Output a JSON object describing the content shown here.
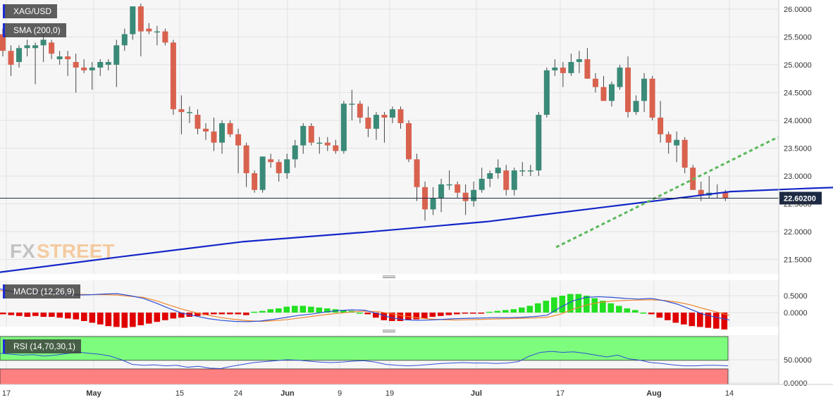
{
  "symbol": "XAG/USD",
  "indicator_labels": {
    "sma": "SMA (200,0)",
    "macd": "MACD (12,26,9)",
    "rsi": "RSI (14,70,30,1)"
  },
  "watermark": {
    "fx": "FX",
    "street": "STREET"
  },
  "current_price_label": "22.60200",
  "colors": {
    "bull": "#3a8a78",
    "bear": "#d9624f",
    "sma": "#1426c8",
    "trendline": "#5cb85c",
    "macd_line": "#2d4fd6",
    "signal_line": "#f0872e",
    "hist_pos": "#22e022",
    "hist_neg": "#e00000",
    "rsi_overbought_zone": "#7dfc7d",
    "rsi_oversold_zone": "#ff8080",
    "rsi_line": "#2d4fd6"
  },
  "x_axis_labels": [
    "17",
    "May",
    "15",
    "24",
    "Jun",
    "9",
    "19",
    "Jul",
    "17",
    "Aug",
    "14"
  ],
  "chart_data": [
    {
      "type": "candlestick",
      "title": "XAG/USD",
      "ylim": [
        21.25,
        26.15
      ],
      "y_ticks": [
        "26.0000",
        "25.5000",
        "25.0000",
        "24.5000",
        "24.0000",
        "23.5000",
        "23.0000",
        "22.5000",
        "22.0000",
        "21.5000"
      ],
      "current_price": 22.602,
      "candles": [
        [
          25.55,
          25.65,
          25.15,
          25.25
        ],
        [
          25.25,
          25.35,
          24.8,
          25.0
        ],
        [
          25.05,
          25.35,
          24.95,
          25.3
        ],
        [
          25.3,
          25.45,
          25.15,
          25.35
        ],
        [
          25.3,
          25.4,
          24.65,
          25.35
        ],
        [
          25.35,
          25.55,
          25.05,
          25.45
        ],
        [
          25.4,
          25.45,
          25.1,
          25.2
        ],
        [
          25.1,
          25.25,
          25.0,
          25.15
        ],
        [
          25.15,
          25.25,
          24.8,
          25.1
        ],
        [
          25.05,
          25.2,
          24.5,
          24.95
        ],
        [
          24.95,
          25.1,
          24.85,
          24.9
        ],
        [
          24.9,
          25.05,
          24.55,
          24.95
        ],
        [
          24.95,
          25.1,
          24.8,
          25.05
        ],
        [
          25.0,
          25.1,
          24.9,
          25.05
        ],
        [
          25.0,
          25.45,
          24.6,
          25.35
        ],
        [
          25.35,
          25.65,
          25.25,
          25.55
        ],
        [
          25.55,
          26.05,
          25.45,
          26.05
        ],
        [
          26.05,
          26.1,
          25.15,
          25.6
        ],
        [
          25.65,
          25.75,
          25.55,
          25.6
        ],
        [
          25.6,
          25.7,
          25.35,
          25.6
        ],
        [
          25.6,
          25.65,
          25.35,
          25.4
        ],
        [
          25.4,
          25.45,
          24.1,
          24.2
        ],
        [
          24.2,
          24.45,
          23.75,
          24.15
        ],
        [
          24.15,
          24.25,
          23.95,
          24.15
        ],
        [
          24.1,
          24.2,
          23.75,
          23.85
        ],
        [
          23.85,
          23.95,
          23.65,
          23.8
        ],
        [
          23.8,
          24.05,
          23.45,
          23.6
        ],
        [
          23.6,
          24.0,
          23.4,
          23.95
        ],
        [
          23.95,
          24.0,
          23.7,
          23.75
        ],
        [
          23.75,
          23.85,
          23.05,
          23.55
        ],
        [
          23.55,
          23.6,
          22.8,
          23.05
        ],
        [
          23.05,
          23.1,
          22.7,
          22.75
        ],
        [
          22.75,
          23.35,
          22.7,
          23.35
        ],
        [
          23.3,
          23.4,
          23.15,
          23.25
        ],
        [
          23.25,
          23.3,
          22.9,
          23.05
        ],
        [
          23.05,
          23.4,
          22.95,
          23.3
        ],
        [
          23.3,
          23.65,
          23.15,
          23.55
        ],
        [
          23.55,
          23.95,
          23.4,
          23.9
        ],
        [
          23.9,
          23.95,
          23.55,
          23.6
        ],
        [
          23.6,
          23.7,
          23.4,
          23.6
        ],
        [
          23.6,
          23.7,
          23.45,
          23.55
        ],
        [
          23.55,
          23.65,
          23.4,
          23.45
        ],
        [
          23.45,
          24.35,
          23.4,
          24.3
        ],
        [
          24.3,
          24.55,
          24.0,
          24.3
        ],
        [
          24.3,
          24.35,
          23.95,
          24.05
        ],
        [
          24.05,
          24.25,
          23.7,
          23.85
        ],
        [
          23.85,
          24.15,
          23.65,
          24.1
        ],
        [
          24.1,
          24.15,
          23.6,
          24.05
        ],
        [
          24.05,
          24.25,
          23.95,
          24.2
        ],
        [
          24.2,
          24.25,
          23.85,
          23.95
        ],
        [
          23.95,
          24.0,
          23.25,
          23.3
        ],
        [
          23.3,
          23.4,
          22.55,
          22.8
        ],
        [
          22.8,
          22.9,
          22.2,
          22.4
        ],
        [
          22.4,
          22.8,
          22.3,
          22.6
        ],
        [
          22.6,
          22.95,
          22.35,
          22.85
        ],
        [
          22.85,
          23.1,
          22.75,
          22.85
        ],
        [
          22.85,
          22.9,
          22.6,
          22.7
        ],
        [
          22.7,
          22.85,
          22.3,
          22.55
        ],
        [
          22.55,
          22.9,
          22.45,
          22.75
        ],
        [
          22.75,
          23.15,
          22.7,
          22.95
        ],
        [
          22.95,
          23.1,
          22.8,
          23.05
        ],
        [
          23.05,
          23.3,
          22.95,
          23.15
        ],
        [
          23.1,
          23.2,
          22.65,
          22.75
        ],
        [
          22.75,
          23.15,
          22.65,
          23.1
        ],
        [
          23.1,
          23.25,
          23.0,
          23.1
        ],
        [
          23.1,
          23.2,
          23.0,
          23.1
        ],
        [
          23.1,
          24.15,
          23.0,
          24.1
        ],
        [
          24.1,
          24.95,
          24.05,
          24.9
        ],
        [
          24.9,
          25.1,
          24.8,
          24.95
        ],
        [
          24.95,
          25.05,
          24.6,
          24.85
        ],
        [
          24.85,
          25.2,
          24.8,
          25.05
        ],
        [
          25.05,
          25.25,
          24.85,
          25.1
        ],
        [
          25.1,
          25.3,
          24.75,
          24.75
        ],
        [
          24.75,
          24.85,
          24.5,
          24.6
        ],
        [
          24.6,
          24.8,
          24.35,
          24.35
        ],
        [
          24.35,
          24.7,
          24.25,
          24.65
        ],
        [
          24.6,
          25.0,
          24.55,
          24.95
        ],
        [
          24.95,
          25.15,
          24.05,
          24.15
        ],
        [
          24.15,
          24.45,
          24.1,
          24.35
        ],
        [
          24.35,
          24.85,
          24.15,
          24.75
        ],
        [
          24.75,
          24.8,
          24.0,
          24.05
        ],
        [
          24.05,
          24.35,
          23.6,
          23.75
        ],
        [
          23.75,
          23.8,
          23.4,
          23.6
        ],
        [
          23.55,
          23.8,
          23.25,
          23.65
        ],
        [
          23.65,
          23.7,
          23.05,
          23.15
        ],
        [
          23.15,
          23.2,
          22.75,
          22.75
        ],
        [
          22.75,
          22.9,
          22.55,
          22.65
        ],
        [
          22.65,
          23.0,
          22.6,
          22.7
        ],
        [
          22.7,
          22.85,
          22.6,
          22.7
        ],
        [
          22.7,
          22.75,
          22.55,
          22.6
        ]
      ],
      "sma_200": [
        [
          0,
          21.27
        ],
        [
          15,
          21.55
        ],
        [
          30,
          21.82
        ],
        [
          45,
          21.99
        ],
        [
          60,
          22.18
        ],
        [
          75,
          22.45
        ],
        [
          90,
          22.72
        ],
        [
          100,
          22.78
        ],
        [
          108,
          22.82
        ],
        [
          115,
          22.88
        ],
        [
          125,
          23.02
        ],
        [
          133,
          23.1
        ],
        [
          140,
          23.17
        ],
        [
          145,
          23.22
        ],
        [
          151,
          23.27
        ]
      ],
      "trendline": {
        "points": [
          [
            68.5,
            21.72
          ],
          [
            177,
            23.7
          ]
        ]
      }
    },
    {
      "type": "line",
      "title": "MACD (12,26,9)",
      "ylim": [
        -0.3,
        0.75
      ],
      "y_ticks": [
        "0.5000",
        "0.0000"
      ],
      "macd": [
        0.7,
        0.62,
        0.58,
        0.6,
        0.59,
        0.55,
        0.52,
        0.53,
        0.55,
        0.56,
        0.5,
        0.42,
        0.28,
        0.12,
        -0.02,
        -0.1,
        -0.18,
        -0.23,
        -0.26,
        -0.27,
        -0.25,
        -0.2,
        -0.14,
        -0.08,
        -0.04,
        0.02,
        0.06,
        0.08,
        0.07,
        -0.03,
        -0.15,
        -0.21,
        -0.23,
        -0.22,
        -0.2,
        -0.18,
        -0.17,
        -0.16,
        -0.15,
        -0.15,
        -0.14,
        -0.12,
        -0.08,
        0.15,
        0.35,
        0.45,
        0.47,
        0.45,
        0.42,
        0.4,
        0.42,
        0.35,
        0.25,
        0.1,
        -0.05,
        -0.14,
        -0.22
      ],
      "signal": [
        0.65,
        0.63,
        0.6,
        0.58,
        0.57,
        0.56,
        0.54,
        0.53,
        0.53,
        0.52,
        0.48,
        0.45,
        0.35,
        0.22,
        0.1,
        0.0,
        -0.08,
        -0.15,
        -0.2,
        -0.24,
        -0.26,
        -0.24,
        -0.21,
        -0.16,
        -0.11,
        -0.06,
        -0.02,
        0.02,
        0.04,
        0.03,
        -0.03,
        -0.1,
        -0.15,
        -0.19,
        -0.21,
        -0.22,
        -0.21,
        -0.2,
        -0.19,
        -0.18,
        -0.17,
        -0.16,
        -0.14,
        -0.05,
        0.1,
        0.22,
        0.3,
        0.34,
        0.36,
        0.37,
        0.38,
        0.36,
        0.31,
        0.23,
        0.12,
        0.02,
        -0.08
      ],
      "histogram": [
        -0.02,
        -0.03,
        -0.04,
        -0.05,
        -0.04,
        -0.05,
        -0.05,
        -0.06,
        -0.07,
        -0.08,
        -0.1,
        -0.12,
        -0.14,
        -0.16,
        -0.17,
        -0.18,
        -0.17,
        -0.15,
        -0.13,
        -0.11,
        -0.09,
        -0.07,
        -0.06,
        -0.05,
        -0.04,
        -0.03,
        -0.02,
        -0.02,
        -0.02,
        -0.02,
        -0.03,
        0.01,
        0.02,
        0.04,
        0.05,
        0.07,
        0.08,
        0.08,
        0.07,
        0.06,
        0.05,
        0.04,
        0.03,
        0.02,
        0.0,
        -0.02,
        -0.06,
        -0.09,
        -0.1,
        -0.1,
        -0.09,
        -0.08,
        -0.07,
        -0.05,
        -0.04,
        -0.03,
        -0.02,
        -0.01,
        -0.01,
        -0.01,
        0.01,
        0.02,
        0.03,
        0.04,
        0.06,
        0.08,
        0.11,
        0.14,
        0.18,
        0.2,
        0.22,
        0.22,
        0.2,
        0.17,
        0.14,
        0.11,
        0.08,
        0.05,
        0.03,
        0.0,
        -0.02,
        -0.06,
        -0.09,
        -0.12,
        -0.14,
        -0.16,
        -0.17,
        -0.18,
        -0.19,
        -0.2
      ]
    },
    {
      "type": "line",
      "title": "RSI (14,70,30,1)",
      "ylim": [
        0,
        100
      ],
      "y_ticks": [
        "50.0000",
        "0.0000"
      ],
      "overbought": 70,
      "oversold": 30,
      "rsi": [
        64,
        62,
        60,
        61,
        58,
        60,
        63,
        67,
        64,
        62,
        58,
        50,
        40,
        38,
        39,
        37,
        38,
        34,
        36,
        32,
        31,
        36,
        40,
        44,
        46,
        48,
        50,
        49,
        47,
        45,
        44,
        45,
        47,
        48,
        45,
        40,
        38,
        37,
        38,
        40,
        42,
        43,
        44,
        43,
        43,
        42,
        43,
        46,
        58,
        66,
        68,
        66,
        67,
        64,
        60,
        56,
        60,
        52,
        49,
        44,
        42,
        39,
        37,
        37,
        38,
        38,
        37
      ]
    }
  ]
}
